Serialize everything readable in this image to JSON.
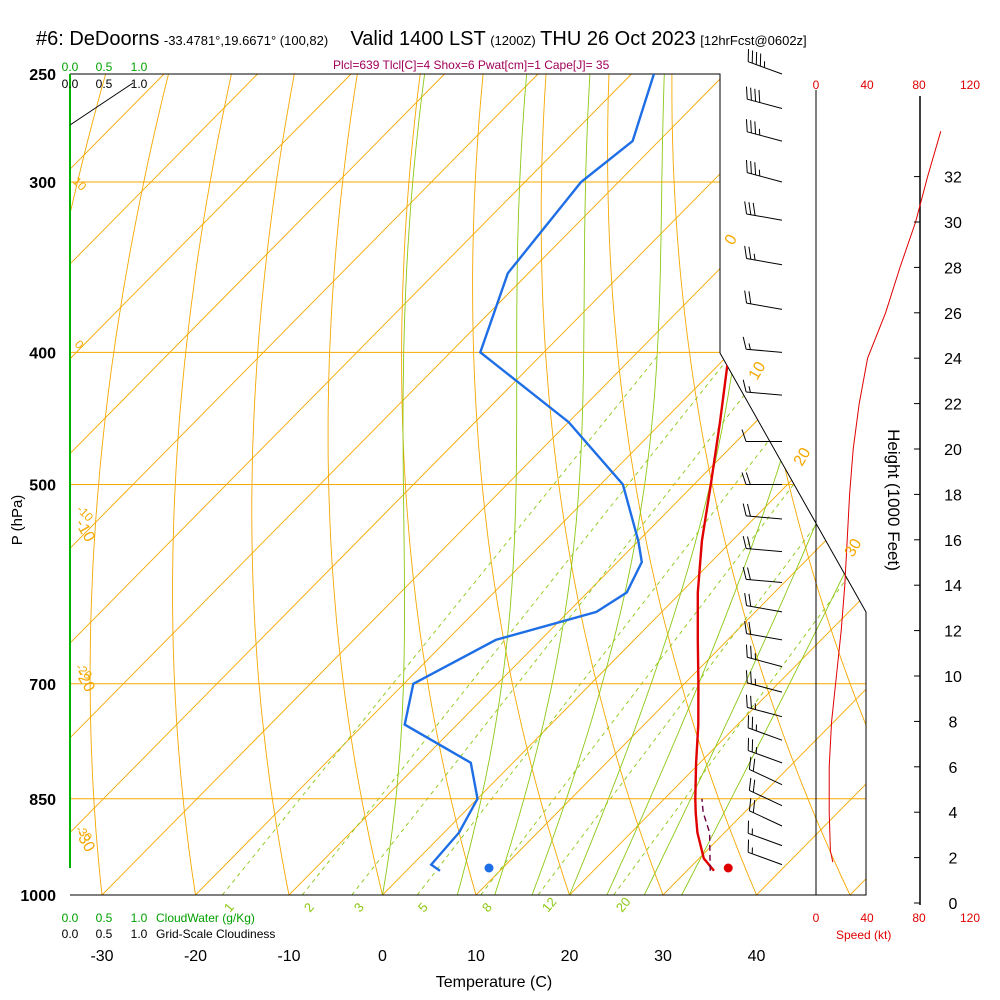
{
  "header": {
    "station": "#6: DeDoorns",
    "coords": "-33.4781°,19.6671° (100,82)",
    "valid": "Valid 1400 LST",
    "zulu": "(1200Z)",
    "date": "THU 26 Oct 2023",
    "forecast": "[12hrFcst@0602z]",
    "indices": "Plcl=639 Tlcl[C]=4 Shox=6 Pwat[cm]=1 Cape[J]= 35"
  },
  "colors": {
    "isotherm": "#f5a800",
    "dry_adiabat": "#f5a800",
    "moist_adiabat": "#8cc814",
    "mixing_ratio": "#8cc814",
    "temperature": "#e00000",
    "dewpoint": "#1e6ee6",
    "parcel": "#6a0040",
    "cloud": "#00a000",
    "wind": "#000000",
    "speed_profile": "#e00000"
  },
  "axis_labels": {
    "ylabel": "P (hPa)",
    "xlabel": "Temperature (C)",
    "height_label": "Height (1000 Feet)",
    "speed_label": "Speed (kt)",
    "cloudwater_label": "CloudWater (g/Kg)",
    "cloudiness_label": "Grid-Scale Cloudiness"
  },
  "chart_data": {
    "type": "skew-t",
    "pressure_ticks": [
      "250",
      "300",
      "400",
      "500",
      "700",
      "850",
      "1000"
    ],
    "temperature_ticks": [
      "-30",
      "-20",
      "-10",
      "0",
      "10",
      "20",
      "30",
      "40"
    ],
    "height_ticks": [
      "0",
      "2",
      "4",
      "6",
      "8",
      "10",
      "12",
      "14",
      "16",
      "18",
      "20",
      "22",
      "24",
      "26",
      "28",
      "30",
      "32"
    ],
    "speed_ticks": [
      "0",
      "40",
      "80",
      "120"
    ],
    "cloud_scale_ticks": [
      "0.0",
      "0.5",
      "1.0"
    ],
    "dry_adiabat_labels": [
      "0",
      "10",
      "20",
      "30",
      "-10",
      "-20",
      "-30"
    ],
    "mixing_ratio_labels": [
      "1",
      "2",
      "3",
      "5",
      "8",
      "12",
      "20"
    ],
    "isotherm_labels": [
      "10",
      "0",
      "-10",
      "-20",
      "-30"
    ],
    "temperature_profile": [
      {
        "p": 960,
        "t": 32.9
      },
      {
        "p": 940,
        "t": 30.5
      },
      {
        "p": 900,
        "t": 27.1
      },
      {
        "p": 870,
        "t": 24.8
      },
      {
        "p": 850,
        "t": 23.3
      },
      {
        "p": 800,
        "t": 19.6
      },
      {
        "p": 750,
        "t": 15.8
      },
      {
        "p": 700,
        "t": 11.5
      },
      {
        "p": 650,
        "t": 6.8
      },
      {
        "p": 600,
        "t": 1.8
      },
      {
        "p": 550,
        "t": -3.2
      },
      {
        "p": 500,
        "t": -8.2
      },
      {
        "p": 450,
        "t": -13.8
      },
      {
        "p": 400,
        "t": -20.2
      },
      {
        "p": 350,
        "t": -27.2
      },
      {
        "p": 300,
        "t": -34.5
      },
      {
        "p": 250,
        "t": -43.5
      }
    ],
    "dewpoint_profile": [
      {
        "p": 960,
        "d": 3.6
      },
      {
        "p": 950,
        "d": 2.0
      },
      {
        "p": 900,
        "d": 1.6
      },
      {
        "p": 850,
        "d": 0.0
      },
      {
        "p": 800,
        "d": -4.5
      },
      {
        "p": 750,
        "d": -15.6
      },
      {
        "p": 700,
        "d": -19.0
      },
      {
        "p": 650,
        "d": -14.8
      },
      {
        "p": 620,
        "d": -7.0
      },
      {
        "p": 600,
        "d": -5.8
      },
      {
        "p": 570,
        "d": -7.4
      },
      {
        "p": 550,
        "d": -10.0
      },
      {
        "p": 500,
        "d": -17.6
      },
      {
        "p": 450,
        "d": -30.0
      },
      {
        "p": 400,
        "d": -46.8
      },
      {
        "p": 350,
        "d": -52.2
      },
      {
        "p": 300,
        "d": -54.0
      },
      {
        "p": 280,
        "d": -52.8
      },
      {
        "p": 250,
        "d": -57.6
      }
    ],
    "parcel_path": [
      {
        "p": 960,
        "t": 32.5
      },
      {
        "p": 900,
        "t": 28.4
      },
      {
        "p": 870,
        "t": 25.6
      },
      {
        "p": 850,
        "t": 24.0
      }
    ],
    "surface_temperature": 34.0,
    "surface_dewpoint": 11.0,
    "wind_barbs": [
      {
        "p": 250,
        "dir": 290,
        "spd": 45
      },
      {
        "p": 265,
        "dir": 285,
        "spd": 40
      },
      {
        "p": 280,
        "dir": 285,
        "spd": 35
      },
      {
        "p": 300,
        "dir": 285,
        "spd": 35
      },
      {
        "p": 320,
        "dir": 280,
        "spd": 30
      },
      {
        "p": 345,
        "dir": 280,
        "spd": 25
      },
      {
        "p": 372,
        "dir": 280,
        "spd": 20
      },
      {
        "p": 400,
        "dir": 275,
        "spd": 15
      },
      {
        "p": 430,
        "dir": 275,
        "spd": 15
      },
      {
        "p": 465,
        "dir": 270,
        "spd": 10
      },
      {
        "p": 500,
        "dir": 270,
        "spd": 20
      },
      {
        "p": 530,
        "dir": 275,
        "spd": 20
      },
      {
        "p": 560,
        "dir": 275,
        "spd": 20
      },
      {
        "p": 590,
        "dir": 275,
        "spd": 20
      },
      {
        "p": 620,
        "dir": 280,
        "spd": 20
      },
      {
        "p": 650,
        "dir": 280,
        "spd": 20
      },
      {
        "p": 680,
        "dir": 285,
        "spd": 25
      },
      {
        "p": 710,
        "dir": 285,
        "spd": 25
      },
      {
        "p": 740,
        "dir": 285,
        "spd": 25
      },
      {
        "p": 770,
        "dir": 290,
        "spd": 25
      },
      {
        "p": 800,
        "dir": 290,
        "spd": 25
      },
      {
        "p": 830,
        "dir": 295,
        "spd": 20
      },
      {
        "p": 860,
        "dir": 295,
        "spd": 20
      },
      {
        "p": 890,
        "dir": 295,
        "spd": 20
      },
      {
        "p": 920,
        "dir": 290,
        "spd": 15
      },
      {
        "p": 950,
        "dir": 290,
        "spd": 15
      }
    ],
    "speed_profile": [
      {
        "h": 1.8,
        "spd": 14
      },
      {
        "h": 2.3,
        "spd": 12
      },
      {
        "h": 4.0,
        "spd": 11
      },
      {
        "h": 6.0,
        "spd": 11
      },
      {
        "h": 8.0,
        "spd": 13
      },
      {
        "h": 10.0,
        "spd": 17
      },
      {
        "h": 12.0,
        "spd": 21
      },
      {
        "h": 14.0,
        "spd": 24
      },
      {
        "h": 16.0,
        "spd": 26
      },
      {
        "h": 18.0,
        "spd": 28
      },
      {
        "h": 20.0,
        "spd": 31
      },
      {
        "h": 22.0,
        "spd": 36
      },
      {
        "h": 24.0,
        "spd": 43
      },
      {
        "h": 26.0,
        "spd": 58
      },
      {
        "h": 28.0,
        "spd": 70
      },
      {
        "h": 30.0,
        "spd": 83
      },
      {
        "h": 32.0,
        "spd": 93
      },
      {
        "h": 34.0,
        "spd": 104
      }
    ]
  }
}
